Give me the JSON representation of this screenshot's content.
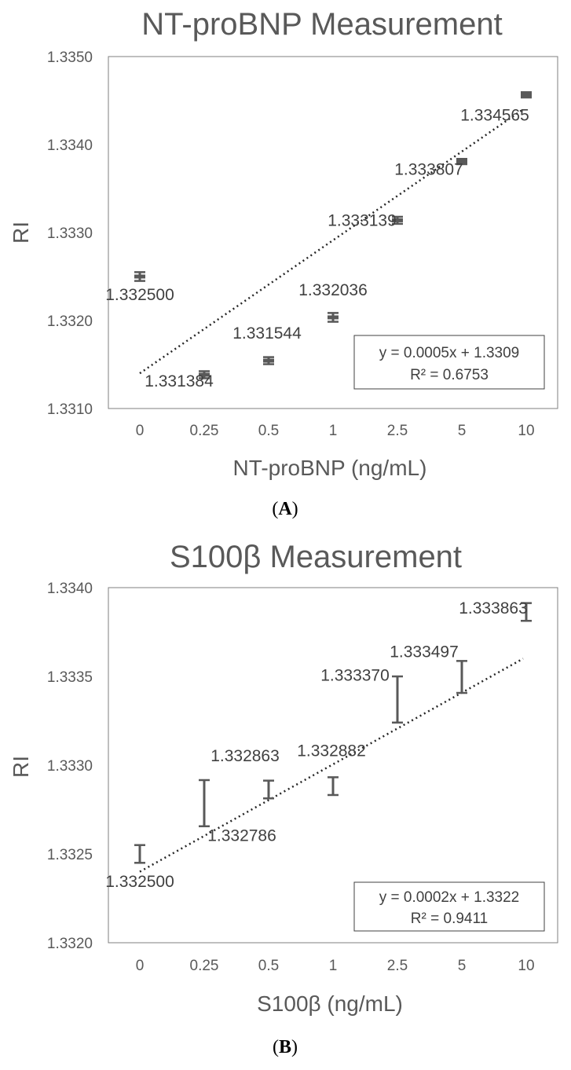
{
  "chart_data": [
    {
      "type": "scatter",
      "panel_label": "A",
      "title": "NT-proBNP Measurement",
      "xlabel": "NT-proBNP (ng/mL)",
      "ylabel": "RI",
      "categories": [
        "0",
        "0.25",
        "0.5",
        "1",
        "2.5",
        "5",
        "10"
      ],
      "values": [
        1.3325,
        1.331384,
        1.331544,
        1.332036,
        1.333139,
        1.333807,
        1.334565
      ],
      "error": [
        5e-05,
        4e-05,
        4e-05,
        5e-05,
        4e-05,
        3e-05,
        3e-05
      ],
      "data_labels": [
        "1.332500",
        "1.331384",
        "1.331544",
        "1.332036",
        "1.333139",
        "1.333807",
        "1.334565"
      ],
      "ylim": [
        1.331,
        1.335
      ],
      "yticks": [
        "1.3310",
        "1.3320",
        "1.3330",
        "1.3340",
        "1.3350"
      ],
      "ytick_values": [
        1.331,
        1.332,
        1.333,
        1.334,
        1.335
      ],
      "trendline": {
        "equation": "y = 0.0005x + 1.3309",
        "r2": "R² = 0.6753",
        "slope": 0.0005,
        "intercept": 1.3309
      },
      "grid": false
    },
    {
      "type": "scatter",
      "panel_label": "B",
      "title": "S100β Measurement",
      "xlabel": "S100β (ng/mL)",
      "ylabel": "RI",
      "categories": [
        "0",
        "0.25",
        "0.5",
        "1",
        "2.5",
        "5",
        "10"
      ],
      "values": [
        1.3325,
        1.332786,
        1.332863,
        1.332882,
        1.33337,
        1.333497,
        1.333863
      ],
      "error": [
        5e-05,
        0.00013,
        5e-05,
        5e-05,
        0.00013,
        9e-05,
        5e-05
      ],
      "data_labels": [
        "1.332500",
        "1.332786",
        "1.332863",
        "1.332882",
        "1.333370",
        "1.333497",
        "1.333863"
      ],
      "ylim": [
        1.332,
        1.334
      ],
      "yticks": [
        "1.3320",
        "1.3325",
        "1.3330",
        "1.3335",
        "1.3340"
      ],
      "ytick_values": [
        1.332,
        1.3325,
        1.333,
        1.3335,
        1.334
      ],
      "trendline": {
        "equation": "y = 0.0002x + 1.3322",
        "r2": "R² = 0.9411",
        "slope": 0.0002,
        "intercept": 1.3322
      },
      "grid": false
    }
  ],
  "colors": {
    "text": "#595959",
    "marker": "#595959",
    "trendline": "#262626",
    "frame": "#7f7f7f"
  }
}
